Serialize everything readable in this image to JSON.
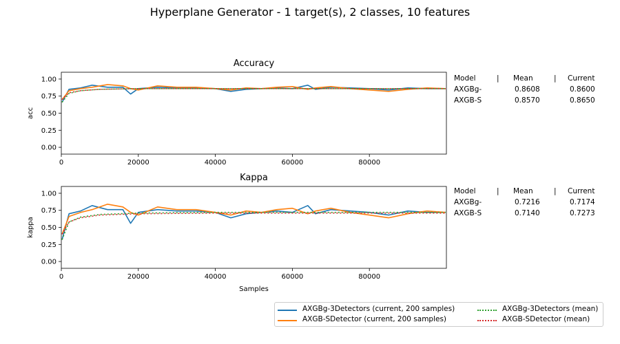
{
  "figure": {
    "title": "Hyperplane Generator - 1 target(s), 2 classes, 10 features"
  },
  "colors": {
    "blue": "#1f77b4",
    "orange": "#ff7f0e",
    "green": "#2ca02c",
    "red": "#d62728"
  },
  "chart_data": [
    {
      "type": "line",
      "title": "Accuracy",
      "xlabel": "",
      "ylabel": "acc",
      "xlim": [
        0,
        100000
      ],
      "ylim": [
        -0.1,
        1.1
      ],
      "xticks": [
        "0",
        "20000",
        "40000",
        "60000",
        "80000"
      ],
      "yticks": [
        "0.00",
        "0.25",
        "0.50",
        "0.75",
        "1.00"
      ],
      "series": [
        {
          "name": "AXGBg-3Detectors  (current, 200 samples)",
          "style": "solid",
          "color": "#1f77b4",
          "x": [
            200,
            2000,
            5000,
            8000,
            12000,
            16000,
            18000,
            20000,
            25000,
            30000,
            35000,
            40000,
            44000,
            48000,
            52000,
            56000,
            60000,
            64000,
            66000,
            70000,
            75000,
            80000,
            85000,
            90000,
            95000,
            99800
          ],
          "y": [
            0.66,
            0.85,
            0.87,
            0.91,
            0.88,
            0.88,
            0.78,
            0.86,
            0.88,
            0.87,
            0.87,
            0.86,
            0.82,
            0.85,
            0.86,
            0.87,
            0.86,
            0.91,
            0.85,
            0.88,
            0.87,
            0.86,
            0.84,
            0.87,
            0.86,
            0.86
          ]
        },
        {
          "name": "AXGB-SDetector  (current, 200 samples)",
          "style": "solid",
          "color": "#ff7f0e",
          "x": [
            200,
            2000,
            5000,
            8000,
            12000,
            16000,
            18000,
            20000,
            25000,
            30000,
            35000,
            40000,
            44000,
            48000,
            52000,
            56000,
            60000,
            64000,
            66000,
            70000,
            75000,
            80000,
            85000,
            90000,
            95000,
            99800
          ],
          "y": [
            0.7,
            0.83,
            0.86,
            0.88,
            0.92,
            0.9,
            0.86,
            0.84,
            0.9,
            0.88,
            0.88,
            0.86,
            0.84,
            0.87,
            0.86,
            0.88,
            0.89,
            0.85,
            0.87,
            0.89,
            0.86,
            0.84,
            0.82,
            0.85,
            0.87,
            0.86
          ]
        },
        {
          "name": "AXGBg-3Detectors (mean)",
          "style": "dotted",
          "color": "#2ca02c",
          "x": [
            200,
            2000,
            5000,
            10000,
            20000,
            40000,
            60000,
            80000,
            99800
          ],
          "y": [
            0.66,
            0.79,
            0.83,
            0.85,
            0.86,
            0.86,
            0.86,
            0.86,
            0.86
          ]
        },
        {
          "name": "AXGB-SDetector (mean)",
          "style": "dotted",
          "color": "#d62728",
          "x": [
            200,
            2000,
            5000,
            10000,
            20000,
            40000,
            60000,
            80000,
            99800
          ],
          "y": [
            0.7,
            0.8,
            0.83,
            0.85,
            0.86,
            0.86,
            0.86,
            0.86,
            0.86
          ]
        }
      ]
    },
    {
      "type": "line",
      "title": "Kappa",
      "xlabel": "Samples",
      "ylabel": "kappa",
      "xlim": [
        0,
        100000
      ],
      "ylim": [
        -0.1,
        1.1
      ],
      "xticks": [
        "0",
        "20000",
        "40000",
        "60000",
        "80000"
      ],
      "yticks": [
        "0.00",
        "0.25",
        "0.50",
        "0.75",
        "1.00"
      ],
      "series": [
        {
          "name": "AXGBg-3Detectors  (current, 200 samples)",
          "style": "solid",
          "color": "#1f77b4",
          "x": [
            200,
            2000,
            5000,
            8000,
            12000,
            16000,
            18000,
            20000,
            25000,
            30000,
            35000,
            40000,
            44000,
            48000,
            52000,
            56000,
            60000,
            64000,
            66000,
            70000,
            75000,
            80000,
            85000,
            90000,
            95000,
            99800
          ],
          "y": [
            0.32,
            0.7,
            0.74,
            0.82,
            0.76,
            0.76,
            0.56,
            0.72,
            0.76,
            0.74,
            0.74,
            0.72,
            0.64,
            0.7,
            0.72,
            0.74,
            0.72,
            0.82,
            0.7,
            0.76,
            0.74,
            0.72,
            0.68,
            0.74,
            0.72,
            0.72
          ]
        },
        {
          "name": "AXGB-SDetector  (current, 200 samples)",
          "style": "solid",
          "color": "#ff7f0e",
          "x": [
            200,
            2000,
            5000,
            8000,
            12000,
            16000,
            18000,
            20000,
            25000,
            30000,
            35000,
            40000,
            44000,
            48000,
            52000,
            56000,
            60000,
            64000,
            66000,
            70000,
            75000,
            80000,
            85000,
            90000,
            95000,
            99800
          ],
          "y": [
            0.4,
            0.66,
            0.72,
            0.76,
            0.84,
            0.8,
            0.72,
            0.68,
            0.8,
            0.76,
            0.76,
            0.72,
            0.68,
            0.74,
            0.72,
            0.76,
            0.78,
            0.7,
            0.74,
            0.78,
            0.72,
            0.68,
            0.64,
            0.7,
            0.74,
            0.72
          ]
        },
        {
          "name": "AXGBg-3Detectors (mean)",
          "style": "dotted",
          "color": "#2ca02c",
          "x": [
            200,
            2000,
            5000,
            10000,
            20000,
            40000,
            60000,
            80000,
            99800
          ],
          "y": [
            0.32,
            0.58,
            0.65,
            0.69,
            0.71,
            0.72,
            0.72,
            0.72,
            0.72
          ]
        },
        {
          "name": "AXGB-SDetector (mean)",
          "style": "dotted",
          "color": "#d62728",
          "x": [
            200,
            2000,
            5000,
            10000,
            20000,
            40000,
            60000,
            80000,
            99800
          ],
          "y": [
            0.4,
            0.58,
            0.64,
            0.68,
            0.7,
            0.71,
            0.71,
            0.71,
            0.71
          ]
        }
      ]
    }
  ],
  "tables": [
    {
      "header": [
        "Model",
        "|",
        "Mean",
        "|",
        "Current"
      ],
      "rows": [
        [
          "AXGBg-",
          "0.8608",
          "0.8600"
        ],
        [
          "AXGB-S",
          "0.8570",
          "0.8650"
        ]
      ]
    },
    {
      "header": [
        "Model",
        "|",
        "Mean",
        "|",
        "Current"
      ],
      "rows": [
        [
          "AXGBg-",
          "0.7216",
          "0.7174"
        ],
        [
          "AXGB-S",
          "0.7140",
          "0.7273"
        ]
      ]
    }
  ],
  "legend": {
    "placement": "lower-right",
    "items": [
      {
        "label": "AXGBg-3Detectors  (current, 200 samples)",
        "color": "#1f77b4",
        "style": "solid"
      },
      {
        "label": "AXGB-SDetector  (current, 200 samples)",
        "color": "#ff7f0e",
        "style": "solid"
      },
      {
        "label": "AXGBg-3Detectors (mean)",
        "color": "#2ca02c",
        "style": "dotted"
      },
      {
        "label": "AXGB-SDetector (mean)",
        "color": "#d62728",
        "style": "dotted"
      }
    ]
  }
}
